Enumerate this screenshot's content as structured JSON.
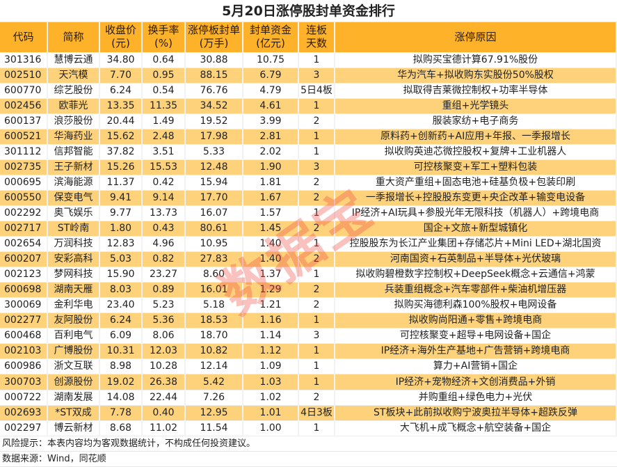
{
  "title": "5月20日涨停股封单资金排行",
  "headers": [
    [
      "代码",
      ""
    ],
    [
      "简称",
      ""
    ],
    [
      "收盘价",
      "(元)"
    ],
    [
      "换手率",
      "(%)"
    ],
    [
      "涨停板封单",
      "(万手)"
    ],
    [
      "封单资金",
      "(亿元)"
    ],
    [
      "连板",
      "天数"
    ],
    [
      "涨停原因",
      ""
    ]
  ],
  "rows": [
    [
      "301316",
      "慧博云通",
      "34.80",
      "0.64",
      "30.88",
      "10.75",
      "1",
      "拟购买宝德计算67.91%股份"
    ],
    [
      "002510",
      "天汽模",
      "7.70",
      "0.95",
      "88.15",
      "6.79",
      "3",
      "华为汽车+拟收购东实股份50%股权"
    ],
    [
      "600770",
      "综艺股份",
      "6.24",
      "0.54",
      "76.76",
      "4.79",
      "5日4板",
      "拟取得吉莱微控制权+功率半导体"
    ],
    [
      "002456",
      "欧菲光",
      "13.35",
      "11.35",
      "34.52",
      "4.61",
      "1",
      "重组+光学镜头"
    ],
    [
      "600137",
      "浪莎股份",
      "20.44",
      "1.49",
      "19.52",
      "3.99",
      "2",
      "服装家纺+电子商务"
    ],
    [
      "600521",
      "华海药业",
      "15.62",
      "2.48",
      "17.98",
      "2.81",
      "1",
      "原料药+创新药+AI应用+年报、一季报增长"
    ],
    [
      "301112",
      "信邦智能",
      "37.82",
      "3.51",
      "5.33",
      "2.02",
      "1",
      "拟收购英迪芯微控股权+复牌+工业机器人"
    ],
    [
      "002735",
      "王子新材",
      "15.26",
      "15.53",
      "12.48",
      "1.90",
      "3",
      "可控核聚变+军工+塑料包装"
    ],
    [
      "000695",
      "滨海能源",
      "11.37",
      "0.42",
      "15.94",
      "1.81",
      "2",
      "重大资产重组+固态电池+硅基负极+包装印刷"
    ],
    [
      "600550",
      "保变电气",
      "9.41",
      "9.14",
      "17.70",
      "1.67",
      "2",
      "一季报增长+控股股东变更+央企改革+输变电设备"
    ],
    [
      "002292",
      "奥飞娱乐",
      "9.77",
      "13.73",
      "16.07",
      "1.57",
      "1",
      "IP经济+AI玩具+参股光年无限科技（机器人）+跨境电商"
    ],
    [
      "002717",
      "ST岭南",
      "1.80",
      "0.43",
      "80.61",
      "1.45",
      "2",
      "国企+文旅+新型城镇化"
    ],
    [
      "002654",
      "万润科技",
      "12.83",
      "4.96",
      "10.95",
      "1.40",
      "1",
      "控股股东为长江产业集团+存储芯片+Mini LED+湖北国资"
    ],
    [
      "600207",
      "安彩高科",
      "5.03",
      "0.82",
      "27.83",
      "1.40",
      "2",
      "河南国资+石英制品+半导体+光伏玻璃"
    ],
    [
      "002123",
      "梦网科技",
      "15.90",
      "23.27",
      "8.60",
      "1.37",
      "1",
      "拟收购碧橙数字控制权+DeepSeek概念+云通信+鸿蒙"
    ],
    [
      "600698",
      "湖南天雁",
      "8.03",
      "0.89",
      "16.01",
      "1.29",
      "2",
      "兵装重组概念+汽车零部件+柴油机增压器"
    ],
    [
      "300069",
      "金利华电",
      "23.40",
      "5.23",
      "5.18",
      "1.21",
      "2",
      "拟购买海德利森100%股权+电网设备"
    ],
    [
      "002277",
      "友阿股份",
      "6.24",
      "5.36",
      "18.53",
      "1.16",
      "1",
      "拟收购尚阳通+零售+跨境电商"
    ],
    [
      "600468",
      "百利电气",
      "6.09",
      "8.06",
      "18.70",
      "1.14",
      "3",
      "可控核聚变+超导+电网设备+国企"
    ],
    [
      "002103",
      "广博股份",
      "10.31",
      "12.03",
      "10.82",
      "1.12",
      "1",
      "IP经济+海外生产基地+广告营销+跨境电商"
    ],
    [
      "600986",
      "浙文互联",
      "8.98",
      "10.28",
      "12.14",
      "1.09",
      "1",
      "算力+AI营销+国企"
    ],
    [
      "300703",
      "创源股份",
      "19.02",
      "26.38",
      "5.42",
      "1.03",
      "1",
      "IP经济+宠物经济+文创消费品+外销"
    ],
    [
      "000722",
      "湖南发展",
      "14.08",
      "22.44",
      "7.26",
      "1.02",
      "2",
      "并购重组+绿色电力+光伏"
    ],
    [
      "002693",
      "*ST双成",
      "7.78",
      "0.40",
      "12.95",
      "1.01",
      "4日3板",
      "ST板块+此前拟收购宁波奥拉半导体+超跌反弹"
    ],
    [
      "002297",
      "博云新材",
      "8.68",
      "11.02",
      "11.54",
      "1.00",
      "1",
      "大飞机+成飞概念+航空装备+国企"
    ]
  ],
  "footer": {
    "risk": "风险提示：本表内容均为客观数据统计，不构成任何投资建议。",
    "source": "数据来源：Wind，同花顺"
  },
  "watermark": "数据宝",
  "colors": {
    "header": "#fdb22a",
    "alt_row": "#fdd27a"
  }
}
